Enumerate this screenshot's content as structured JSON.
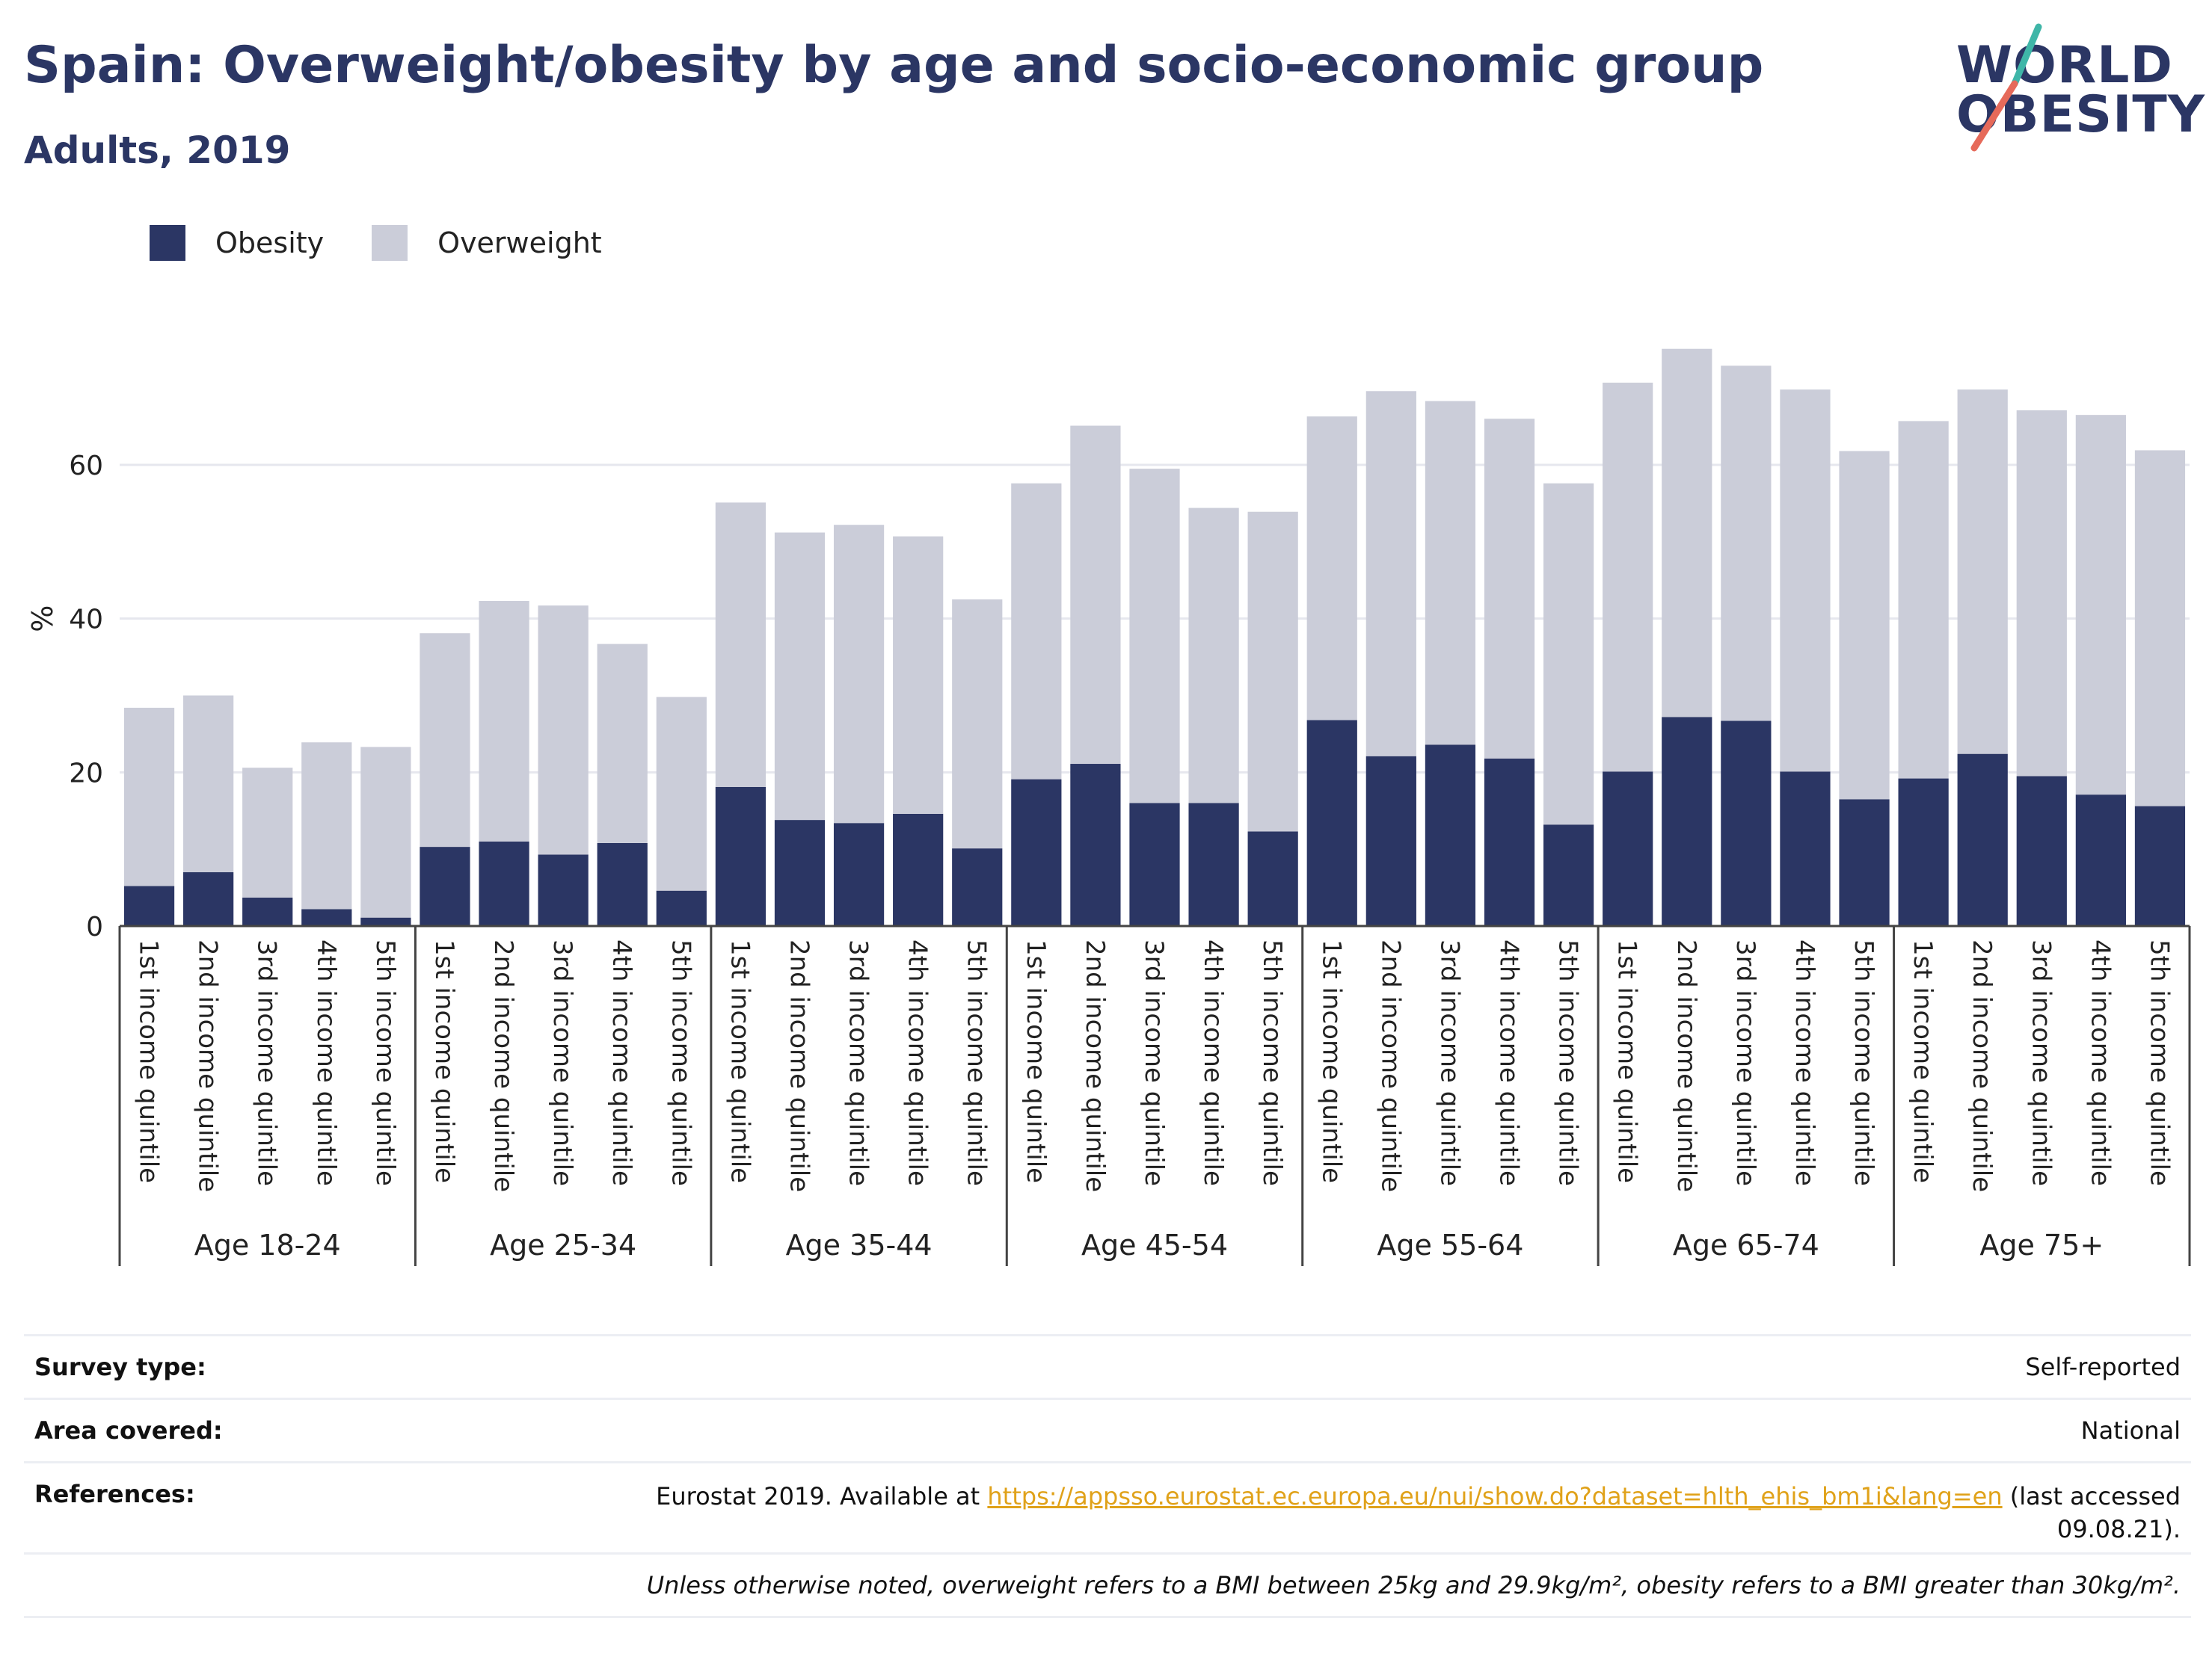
{
  "header": {
    "title": "Spain: Overweight/obesity by age and socio-economic group",
    "subtitle": "Adults, 2019"
  },
  "logo": {
    "line1": "WORLD",
    "line2": "OBESITY"
  },
  "colors": {
    "obesity": "#2b3664",
    "overweight": "#cbcdd9",
    "accent_teal": "#3fb6a8",
    "accent_red": "#e66a5a"
  },
  "legend": {
    "items": [
      "Obesity",
      "Overweight"
    ]
  },
  "chart_data": {
    "type": "bar",
    "stacked": true,
    "ylabel": "%",
    "xlabel": "",
    "ylim": [
      0,
      80
    ],
    "yticks": [
      0,
      20,
      40,
      60
    ],
    "grid": true,
    "legend_position": "top-left",
    "groups": [
      "Age 18-24",
      "Age 25-34",
      "Age 35-44",
      "Age 45-54",
      "Age 55-64",
      "Age 65-74",
      "Age 75+"
    ],
    "subcategories": [
      "1st income quintile",
      "2nd income quintile",
      "3rd income quintile",
      "4th income quintile",
      "5th income quintile"
    ],
    "series": [
      {
        "name": "Obesity",
        "values": [
          5.2,
          7.0,
          3.7,
          2.2,
          1.1,
          10.3,
          11.0,
          9.3,
          10.8,
          4.6,
          18.1,
          13.8,
          13.4,
          14.6,
          10.1,
          19.1,
          21.1,
          16.0,
          16.0,
          12.3,
          26.8,
          22.1,
          23.6,
          21.8,
          13.2,
          20.1,
          27.2,
          26.7,
          20.1,
          16.5,
          19.2,
          22.4,
          19.5,
          17.1,
          15.6
        ]
      },
      {
        "name": "Overweight",
        "values": [
          23.2,
          23.0,
          16.9,
          21.7,
          22.2,
          27.8,
          31.3,
          32.4,
          25.9,
          25.2,
          37.0,
          37.4,
          38.8,
          36.1,
          32.4,
          38.5,
          44.0,
          43.5,
          38.4,
          41.6,
          39.5,
          47.5,
          44.7,
          44.2,
          44.4,
          50.6,
          47.9,
          46.2,
          49.7,
          45.3,
          46.5,
          47.4,
          47.6,
          49.4,
          46.3
        ]
      }
    ]
  },
  "info": {
    "survey_type_label": "Survey type:",
    "survey_type_value": "Self-reported",
    "area_label": "Area covered:",
    "area_value": "National",
    "references_label": "References:",
    "references_prefix": "Eurostat 2019. Available at ",
    "references_link": "https://appsso.eurostat.ec.europa.eu/nui/show.do?dataset=hlth_ehis_bm1i&lang=en",
    "references_suffix": " (last accessed",
    "references_date": "09.08.21).",
    "note": "Unless otherwise noted, overweight refers to a BMI between 25kg and 29.9kg/m², obesity refers to a BMI greater than 30kg/m²."
  }
}
